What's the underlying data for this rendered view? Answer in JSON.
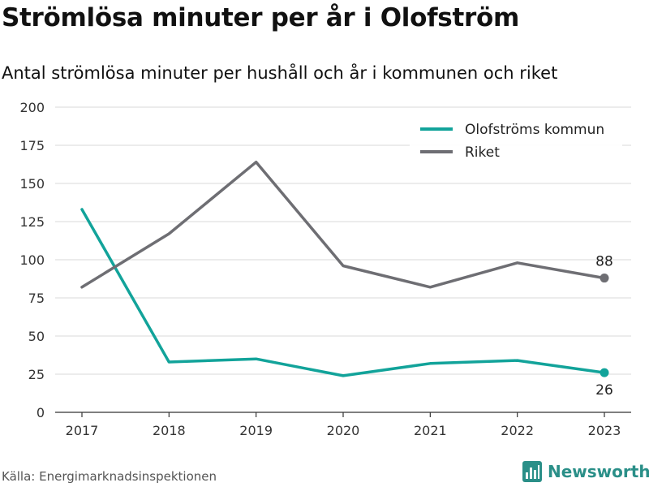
{
  "header": {
    "title": "Strömlösa minuter per år i Olofström",
    "subtitle": "Antal strömlösa minuter per hushåll och år i kommunen och riket"
  },
  "footer": {
    "source": "Källa: Energimarknadsinspektionen",
    "brand": "Newsworthy",
    "brand_icon": "bar-chart-icon",
    "brand_color": "#2a8f88"
  },
  "chart_data": {
    "type": "line",
    "x": [
      "2017",
      "2018",
      "2019",
      "2020",
      "2021",
      "2022",
      "2023"
    ],
    "ylim": [
      0,
      200
    ],
    "yticks": [
      0,
      25,
      50,
      75,
      100,
      125,
      150,
      175,
      200
    ],
    "grid": "horizontal",
    "legend_position": "top-right",
    "series": [
      {
        "name": "Olofströms kommun",
        "color": "#12a39a",
        "values": [
          133,
          33,
          35,
          24,
          32,
          34,
          26
        ],
        "end_label": "26",
        "end_label_position": "below"
      },
      {
        "name": "Riket",
        "color": "#6e6e73",
        "values": [
          82,
          117,
          164,
          96,
          82,
          98,
          88
        ],
        "end_label": "88",
        "end_label_position": "above"
      }
    ]
  }
}
